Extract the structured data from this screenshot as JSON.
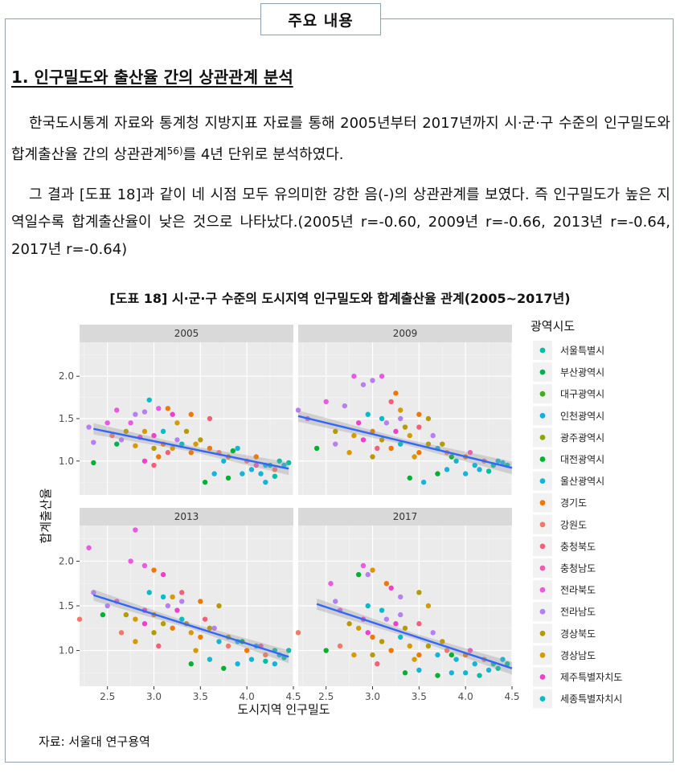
{
  "box_title": "주요 내용",
  "section_title": "1. 인구밀도와 출산율 간의 상관관계 분석",
  "paragraph1": {
    "text": "한국도시통계 자료와 통계청 지방지표 자료를 통해 2005년부터 2017년까지 시·군·구 수준의 인구밀도와 합계출산율 간의 상관관계",
    "footnote": "56)",
    "text_end": "를 4년 단위로 분석하였다."
  },
  "paragraph2": "그 결과 [도표 18]과 같이 네 시점 모두 유의미한 강한 음(-)의 상관관계를 보였다. 즉 인구밀도가 높은 지역일수록 합계출산율이 낮은 것으로 나타났다.(2005년 r=-0.60, 2009년 r=-0.66, 2013년 r=-0.64, 2017년 r=-0.64)",
  "figure_caption": "[도표 18] 시·군·구 수준의 도시지역 인구밀도와 합계출산율 관계(2005~2017년)",
  "source_note": "자료: 서울대 연구용역",
  "chart_data": {
    "type": "scatter",
    "facets": [
      "2005",
      "2009",
      "2013",
      "2017"
    ],
    "xlabel": "도시지역 인구밀도",
    "ylabel": "합계출산율",
    "xlim": [
      2.2,
      4.5
    ],
    "ylim": [
      0.6,
      2.4
    ],
    "xticks": [
      2.5,
      3.0,
      3.5,
      4.0,
      4.5
    ],
    "xtick_labels": [
      "2.5",
      "3.0",
      "3.5",
      "4.0",
      "4.5"
    ],
    "yticks": [
      1.0,
      1.5,
      2.0
    ],
    "ytick_labels": [
      "1.0",
      "1.5",
      "2.0"
    ],
    "grid": true,
    "legend_title": "광역시도",
    "legend_position": "right",
    "legend": [
      {
        "name": "서울특별시",
        "color": "#F8766D"
      },
      {
        "name": "부산광역시",
        "color": "#E58700"
      },
      {
        "name": "대구광역시",
        "color": "#C99800"
      },
      {
        "name": "인천광역시",
        "color": "#A3A500"
      },
      {
        "name": "광주광역시",
        "color": "#6BB100"
      },
      {
        "name": "대전광역시",
        "color": "#00BA38"
      },
      {
        "name": "울산광역시",
        "color": "#00BF7D"
      },
      {
        "name": "경기도",
        "color": "#00C0AF"
      },
      {
        "name": "강원도",
        "color": "#00BCD8"
      },
      {
        "name": "충청북도",
        "color": "#00B0F6"
      },
      {
        "name": "충청남도",
        "color": "#619CFF"
      },
      {
        "name": "전라북도",
        "color": "#B983FF"
      },
      {
        "name": "전라남도",
        "color": "#E76BF3"
      },
      {
        "name": "경상북도",
        "color": "#FD61D1"
      },
      {
        "name": "경상남도",
        "color": "#FF67A4"
      },
      {
        "name": "제주특별자치도",
        "color": "#E76BF3"
      },
      {
        "name": "세종특별자치시",
        "color": "#00BFC4"
      }
    ],
    "display_legend_colors": [
      "#00BFA0",
      "#00B050",
      "#3FAE1F",
      "#0FB0E6",
      "#8AA800",
      "#00B030",
      "#14B4D8",
      "#F07800",
      "#F4786A",
      "#F2607A",
      "#F05AB0",
      "#E85AE0",
      "#B580F0",
      "#B59A00",
      "#D59A00",
      "#F040C8",
      "#00BCC8"
    ],
    "trend": {
      "2005": {
        "x": [
          2.35,
          4.45
        ],
        "y": [
          1.38,
          0.91
        ],
        "r": -0.6
      },
      "2009": {
        "x": [
          2.2,
          4.5
        ],
        "y": [
          1.53,
          0.92
        ],
        "r": -0.66
      },
      "2013": {
        "x": [
          2.35,
          4.45
        ],
        "y": [
          1.62,
          0.93
        ],
        "r": -0.64
      },
      "2017": {
        "x": [
          2.4,
          4.5
        ],
        "y": [
          1.52,
          0.8
        ],
        "r": -0.64
      }
    },
    "points": {
      "2005": [
        [
          2.3,
          1.4,
          12
        ],
        [
          2.35,
          1.22,
          12
        ],
        [
          2.5,
          1.45,
          11
        ],
        [
          2.6,
          1.6,
          11
        ],
        [
          2.8,
          1.55,
          12
        ],
        [
          2.9,
          1.58,
          12
        ],
        [
          3.05,
          1.62,
          11
        ],
        [
          2.95,
          1.72,
          16
        ],
        [
          3.15,
          1.62,
          7
        ],
        [
          3.2,
          1.55,
          15
        ],
        [
          3.4,
          1.55,
          7
        ],
        [
          3.6,
          1.5,
          9
        ],
        [
          2.7,
          1.35,
          13
        ],
        [
          2.9,
          1.35,
          14
        ],
        [
          3.0,
          1.3,
          15
        ],
        [
          3.1,
          1.2,
          7
        ],
        [
          3.2,
          1.15,
          14
        ],
        [
          3.3,
          1.2,
          16
        ],
        [
          3.4,
          1.1,
          7
        ],
        [
          3.5,
          1.25,
          13
        ],
        [
          3.6,
          1.15,
          7
        ],
        [
          3.7,
          1.1,
          8
        ],
        [
          3.8,
          1.05,
          7
        ],
        [
          3.9,
          1.15,
          6
        ],
        [
          4.0,
          1.0,
          8
        ],
        [
          4.1,
          1.05,
          7
        ],
        [
          4.2,
          0.95,
          6
        ],
        [
          4.3,
          0.9,
          8
        ],
        [
          4.35,
          1.0,
          0
        ],
        [
          4.4,
          0.95,
          6
        ],
        [
          4.45,
          0.98,
          0
        ],
        [
          3.55,
          0.75,
          5
        ],
        [
          3.65,
          0.85,
          6
        ],
        [
          3.8,
          0.8,
          5
        ],
        [
          3.95,
          0.85,
          6
        ],
        [
          4.05,
          0.9,
          6
        ],
        [
          4.15,
          0.85,
          6
        ],
        [
          4.2,
          0.75,
          6
        ],
        [
          4.3,
          0.82,
          0
        ],
        [
          4.25,
          0.95,
          0
        ],
        [
          2.35,
          0.98,
          5
        ],
        [
          2.55,
          1.3,
          8
        ],
        [
          2.65,
          1.25,
          12
        ],
        [
          2.8,
          1.18,
          14
        ],
        [
          2.85,
          1.28,
          15
        ],
        [
          3.0,
          1.15,
          13
        ],
        [
          3.05,
          1.05,
          7
        ],
        [
          3.15,
          1.1,
          9
        ],
        [
          3.25,
          1.25,
          12
        ],
        [
          3.35,
          1.35,
          13
        ],
        [
          3.45,
          1.2,
          14
        ],
        [
          3.0,
          0.95,
          9
        ],
        [
          2.9,
          1.0,
          15
        ],
        [
          3.1,
          1.35,
          16
        ],
        [
          3.25,
          1.45,
          14
        ],
        [
          2.6,
          1.2,
          1
        ],
        [
          2.75,
          1.45,
          11
        ],
        [
          3.75,
          1.0,
          6
        ],
        [
          3.85,
          1.12,
          5
        ],
        [
          4.1,
          0.95,
          10
        ]
      ],
      "2009": [
        [
          2.2,
          1.6,
          12
        ],
        [
          2.3,
          1.5,
          11
        ],
        [
          2.5,
          1.7,
          11
        ],
        [
          2.7,
          1.65,
          12
        ],
        [
          2.8,
          2.0,
          11
        ],
        [
          2.9,
          1.9,
          12
        ],
        [
          3.0,
          1.95,
          12
        ],
        [
          3.1,
          2.0,
          11
        ],
        [
          3.25,
          1.8,
          7
        ],
        [
          3.2,
          1.7,
          9
        ],
        [
          3.3,
          1.6,
          14
        ],
        [
          3.5,
          1.55,
          7
        ],
        [
          3.6,
          1.5,
          13
        ],
        [
          2.6,
          1.35,
          13
        ],
        [
          2.8,
          1.3,
          14
        ],
        [
          2.9,
          1.25,
          15
        ],
        [
          3.0,
          1.35,
          7
        ],
        [
          3.1,
          1.25,
          13
        ],
        [
          3.2,
          1.15,
          7
        ],
        [
          3.3,
          1.2,
          16
        ],
        [
          3.4,
          1.3,
          14
        ],
        [
          3.5,
          1.1,
          7
        ],
        [
          3.6,
          1.2,
          13
        ],
        [
          3.7,
          1.15,
          6
        ],
        [
          3.8,
          1.1,
          8
        ],
        [
          3.9,
          1.0,
          6
        ],
        [
          4.0,
          1.05,
          7
        ],
        [
          4.1,
          0.95,
          6
        ],
        [
          4.2,
          1.0,
          8
        ],
        [
          4.3,
          0.95,
          0
        ],
        [
          4.4,
          0.98,
          6
        ],
        [
          4.45,
          0.95,
          0
        ],
        [
          3.4,
          0.8,
          5
        ],
        [
          3.55,
          0.75,
          6
        ],
        [
          3.7,
          0.85,
          5
        ],
        [
          3.8,
          0.9,
          6
        ],
        [
          4.0,
          0.85,
          6
        ],
        [
          4.15,
          0.9,
          6
        ],
        [
          4.25,
          0.88,
          0
        ],
        [
          4.35,
          1.0,
          6
        ],
        [
          2.4,
          1.15,
          5
        ],
        [
          2.6,
          1.2,
          12
        ],
        [
          2.75,
          1.1,
          14
        ],
        [
          2.85,
          1.45,
          15
        ],
        [
          3.0,
          1.05,
          13
        ],
        [
          3.05,
          1.15,
          9
        ],
        [
          3.15,
          1.45,
          12
        ],
        [
          3.25,
          1.35,
          15
        ],
        [
          3.35,
          1.4,
          13
        ],
        [
          3.45,
          1.05,
          14
        ],
        [
          2.95,
          1.55,
          16
        ],
        [
          3.1,
          1.5,
          16
        ],
        [
          3.3,
          1.5,
          12
        ],
        [
          3.5,
          1.4,
          9
        ],
        [
          3.65,
          1.3,
          12
        ],
        [
          3.75,
          1.2,
          13
        ],
        [
          3.85,
          1.05,
          5
        ],
        [
          4.05,
          1.1,
          10
        ]
      ],
      "2013": [
        [
          2.2,
          1.35,
          8
        ],
        [
          2.3,
          2.15,
          11
        ],
        [
          2.35,
          1.65,
          12
        ],
        [
          2.5,
          1.5,
          12
        ],
        [
          2.6,
          1.55,
          11
        ],
        [
          2.75,
          2.0,
          11
        ],
        [
          2.8,
          2.35,
          11
        ],
        [
          2.9,
          1.95,
          11
        ],
        [
          3.0,
          1.9,
          7
        ],
        [
          3.1,
          1.85,
          15
        ],
        [
          3.2,
          1.6,
          14
        ],
        [
          3.3,
          1.65,
          9
        ],
        [
          3.5,
          1.55,
          7
        ],
        [
          3.7,
          1.5,
          13
        ],
        [
          2.7,
          1.4,
          13
        ],
        [
          2.8,
          1.35,
          14
        ],
        [
          2.9,
          1.3,
          15
        ],
        [
          3.0,
          1.4,
          7
        ],
        [
          3.1,
          1.3,
          13
        ],
        [
          3.2,
          1.25,
          7
        ],
        [
          3.3,
          1.35,
          16
        ],
        [
          3.4,
          1.2,
          14
        ],
        [
          3.5,
          1.15,
          7
        ],
        [
          3.6,
          1.25,
          13
        ],
        [
          3.7,
          1.1,
          6
        ],
        [
          3.8,
          1.05,
          8
        ],
        [
          3.9,
          1.1,
          6
        ],
        [
          4.0,
          1.0,
          7
        ],
        [
          4.1,
          1.05,
          6
        ],
        [
          4.2,
          0.95,
          8
        ],
        [
          4.3,
          1.0,
          0
        ],
        [
          4.35,
          0.95,
          6
        ],
        [
          4.45,
          1.0,
          0
        ],
        [
          3.4,
          0.85,
          5
        ],
        [
          3.6,
          0.9,
          6
        ],
        [
          3.75,
          0.8,
          5
        ],
        [
          3.9,
          0.85,
          6
        ],
        [
          4.05,
          0.9,
          6
        ],
        [
          4.2,
          0.88,
          0
        ],
        [
          4.3,
          0.85,
          6
        ],
        [
          4.4,
          0.92,
          0
        ],
        [
          2.45,
          1.4,
          5
        ],
        [
          2.65,
          1.2,
          8
        ],
        [
          2.8,
          1.1,
          14
        ],
        [
          2.9,
          1.45,
          15
        ],
        [
          3.0,
          1.2,
          13
        ],
        [
          3.05,
          1.05,
          9
        ],
        [
          3.15,
          1.5,
          12
        ],
        [
          3.25,
          1.45,
          15
        ],
        [
          3.35,
          1.3,
          13
        ],
        [
          3.45,
          1.0,
          14
        ],
        [
          2.95,
          1.65,
          16
        ],
        [
          3.1,
          1.6,
          16
        ],
        [
          3.3,
          1.55,
          12
        ],
        [
          3.55,
          1.35,
          9
        ],
        [
          3.65,
          1.25,
          12
        ],
        [
          3.8,
          1.15,
          13
        ],
        [
          3.95,
          1.1,
          5
        ],
        [
          4.15,
          1.05,
          10
        ]
      ],
      "2017": [
        [
          2.2,
          1.2,
          8
        ],
        [
          2.55,
          1.75,
          11
        ],
        [
          2.6,
          1.55,
          12
        ],
        [
          2.65,
          1.45,
          11
        ],
        [
          2.9,
          1.95,
          11
        ],
        [
          2.95,
          1.85,
          12
        ],
        [
          3.0,
          1.9,
          14
        ],
        [
          3.15,
          1.75,
          7
        ],
        [
          3.2,
          1.7,
          15
        ],
        [
          3.3,
          1.6,
          12
        ],
        [
          3.5,
          1.65,
          13
        ],
        [
          3.6,
          1.5,
          14
        ],
        [
          2.85,
          1.85,
          5
        ],
        [
          2.75,
          1.3,
          13
        ],
        [
          2.85,
          1.25,
          14
        ],
        [
          2.95,
          1.2,
          15
        ],
        [
          3.0,
          1.15,
          7
        ],
        [
          3.1,
          1.1,
          13
        ],
        [
          3.2,
          1.0,
          7
        ],
        [
          3.3,
          1.15,
          16
        ],
        [
          3.4,
          1.05,
          14
        ],
        [
          3.5,
          0.95,
          7
        ],
        [
          3.6,
          1.05,
          13
        ],
        [
          3.7,
          0.95,
          6
        ],
        [
          3.8,
          1.0,
          8
        ],
        [
          3.9,
          0.9,
          6
        ],
        [
          4.0,
          0.95,
          7
        ],
        [
          4.1,
          0.85,
          6
        ],
        [
          4.2,
          0.9,
          8
        ],
        [
          4.3,
          0.85,
          0
        ],
        [
          4.4,
          0.9,
          6
        ],
        [
          4.45,
          0.85,
          0
        ],
        [
          3.35,
          0.75,
          5
        ],
        [
          3.5,
          0.78,
          6
        ],
        [
          3.7,
          0.72,
          5
        ],
        [
          3.85,
          0.75,
          6
        ],
        [
          4.0,
          0.75,
          6
        ],
        [
          4.15,
          0.72,
          0
        ],
        [
          4.25,
          0.78,
          6
        ],
        [
          4.35,
          0.8,
          0
        ],
        [
          2.5,
          1.0,
          5
        ],
        [
          2.65,
          1.05,
          8
        ],
        [
          2.8,
          0.95,
          14
        ],
        [
          2.9,
          1.35,
          15
        ],
        [
          3.0,
          0.95,
          13
        ],
        [
          3.05,
          0.85,
          9
        ],
        [
          3.15,
          1.35,
          12
        ],
        [
          3.25,
          1.3,
          15
        ],
        [
          3.35,
          1.25,
          13
        ],
        [
          3.45,
          0.9,
          14
        ],
        [
          2.95,
          1.5,
          16
        ],
        [
          3.1,
          1.45,
          16
        ],
        [
          3.3,
          1.4,
          12
        ],
        [
          3.5,
          1.3,
          9
        ],
        [
          3.65,
          1.2,
          12
        ],
        [
          3.75,
          1.1,
          13
        ],
        [
          3.85,
          0.95,
          5
        ],
        [
          4.05,
          1.0,
          10
        ]
      ]
    }
  }
}
